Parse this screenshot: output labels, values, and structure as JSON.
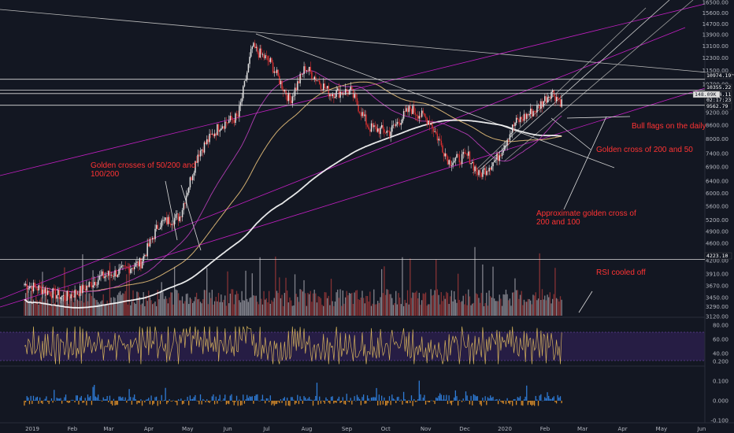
{
  "chart_data": {
    "type": "candlestick",
    "panes": [
      "price",
      "rsi",
      "macd"
    ],
    "price_axis_ticks": [
      "16500.00",
      "15600.00",
      "14700.00",
      "13900.00",
      "13100.00",
      "12300.00",
      "11500.00",
      "10700.00",
      "9900.00",
      "9200.00",
      "8600.00",
      "8000.00",
      "7400.00",
      "6900.00",
      "6400.00",
      "6000.00",
      "5600.00",
      "5200.00",
      "4900.00",
      "4600.00",
      "4200.00",
      "3910.00",
      "3670.00",
      "3450.00",
      "3290.00",
      "3120.00"
    ],
    "price_labels": [
      {
        "text": "10974.19",
        "color": "#ffffff"
      },
      {
        "text": "10355.22",
        "color": "#ffffff"
      },
      {
        "text": "10174.11",
        "color": "#ffffff"
      },
      {
        "text": "02:17:23",
        "color": "#ffffff"
      },
      {
        "text": "9562.79",
        "color": "#ffffff"
      },
      {
        "text": "148.09K",
        "color": "#131722"
      },
      {
        "text": "4223.10",
        "color": "#ffffff"
      }
    ],
    "rsi_axis_ticks": [
      "80.00",
      "60.00",
      "40.00"
    ],
    "macd_axis_ticks": [
      "0.200",
      "0.100",
      "0.000",
      "-0.100"
    ],
    "x_tick_labels": [
      "2019",
      "Feb",
      "Mar",
      "Apr",
      "May",
      "Jun",
      "Jul",
      "Aug",
      "Sep",
      "Oct",
      "Nov",
      "Dec",
      "2020",
      "Feb",
      "Mar",
      "Apr",
      "May",
      "Jun"
    ],
    "price_path": [
      [
        "2019-01-01",
        3700
      ],
      [
        "2019-01-15",
        3600
      ],
      [
        "2019-02-01",
        3450
      ],
      [
        "2019-02-15",
        3600
      ],
      [
        "2019-03-01",
        3850
      ],
      [
        "2019-03-15",
        3950
      ],
      [
        "2019-04-01",
        4150
      ],
      [
        "2019-04-15",
        5100
      ],
      [
        "2019-05-01",
        5300
      ],
      [
        "2019-05-15",
        7400
      ],
      [
        "2019-06-01",
        8600
      ],
      [
        "2019-06-15",
        9000
      ],
      [
        "2019-06-26",
        13000
      ],
      [
        "2019-07-10",
        12000
      ],
      [
        "2019-07-25",
        9800
      ],
      [
        "2019-08-06",
        11700
      ],
      [
        "2019-08-25",
        10200
      ],
      [
        "2019-09-10",
        10300
      ],
      [
        "2019-09-24",
        8500
      ],
      [
        "2019-10-10",
        8300
      ],
      [
        "2019-10-26",
        9400
      ],
      [
        "2019-11-10",
        8800
      ],
      [
        "2019-11-25",
        7100
      ],
      [
        "2019-12-10",
        7300
      ],
      [
        "2019-12-18",
        6600
      ],
      [
        "2020-01-01",
        7200
      ],
      [
        "2020-01-15",
        8700
      ],
      [
        "2020-02-01",
        9400
      ],
      [
        "2020-02-12",
        10300
      ],
      [
        "2020-02-20",
        9700
      ]
    ],
    "horizontal_levels": [
      10974.19,
      10355.22,
      10174.11,
      9562.79,
      4223.1
    ],
    "legend": [],
    "annotations": [
      "Golden crosses of 50/200 and\n100/200",
      "Bull flags on the daily",
      "Golden cross of 200 and 50",
      "Approximate golden cross of\n200 and 100",
      "RSI cooled off"
    ],
    "rsi_levels": [
      70,
      30
    ],
    "grid": false,
    "volume": true
  }
}
